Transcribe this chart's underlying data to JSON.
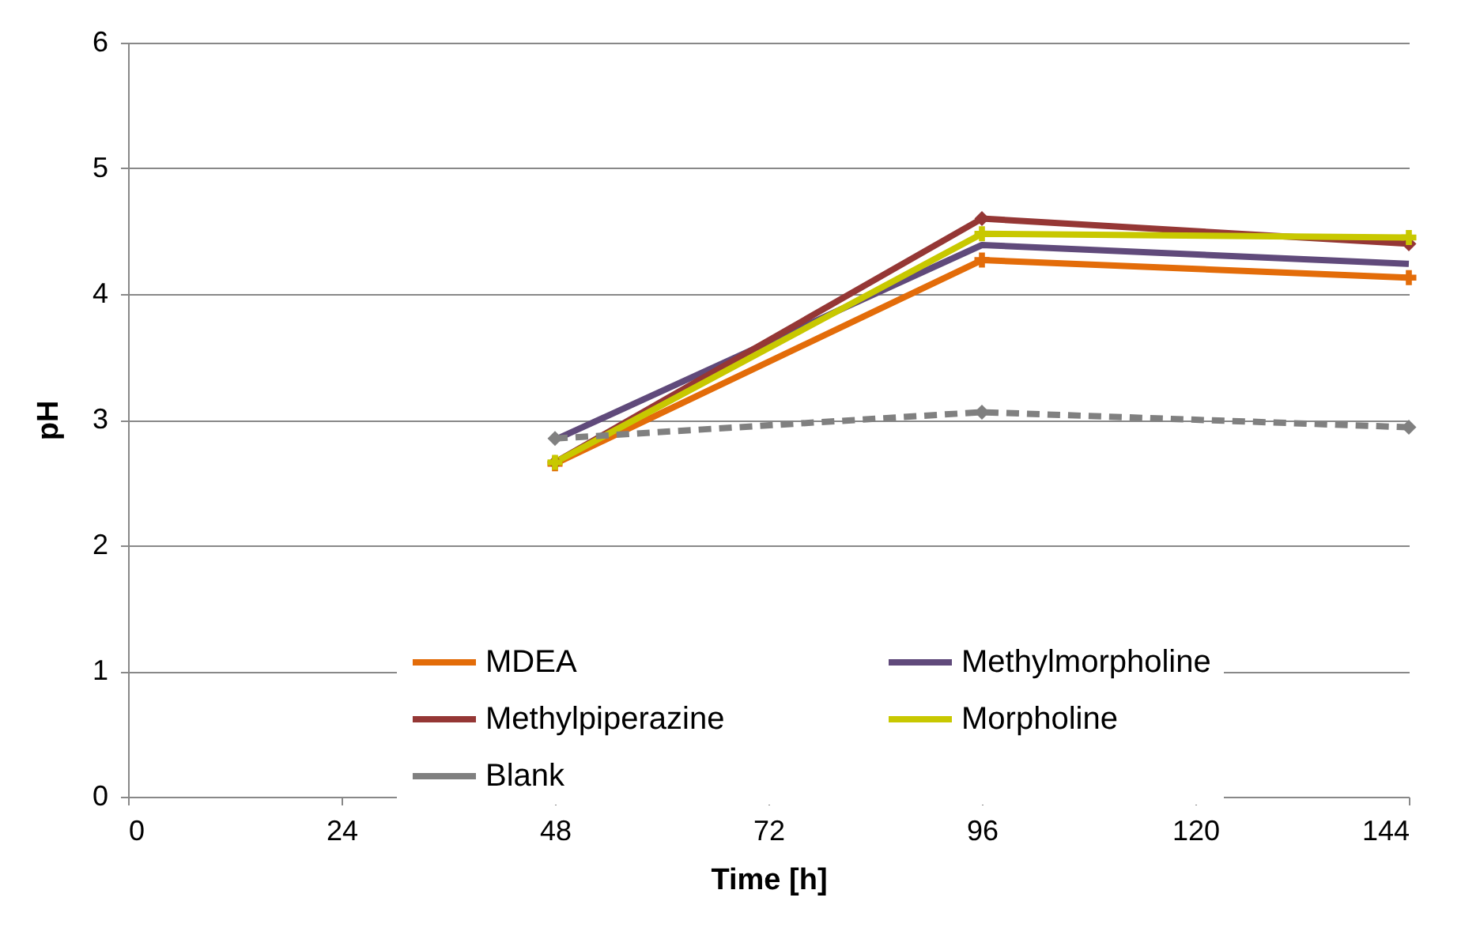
{
  "chart_data": {
    "type": "line",
    "xlabel": "Time [h]",
    "ylabel": "pH",
    "x": [
      48,
      96,
      144
    ],
    "xlim": [
      0,
      144
    ],
    "xticks": [
      0,
      24,
      48,
      72,
      96,
      120,
      144
    ],
    "ylim": [
      0,
      6
    ],
    "yticks": [
      0,
      1,
      2,
      3,
      4,
      5,
      6
    ],
    "grid": "y",
    "legend": "bottom",
    "series": [
      {
        "name": "MDEA",
        "color": "#e36c09",
        "marker": "cross",
        "values": [
          2.65,
          4.27,
          4.13
        ]
      },
      {
        "name": "Methylmorpholine",
        "color": "#604a7b",
        "marker": "none",
        "values": [
          2.84,
          4.39,
          4.24
        ]
      },
      {
        "name": "Methylpiperazine",
        "color": "#953735",
        "marker": "diamond",
        "values": [
          2.66,
          4.6,
          4.4
        ]
      },
      {
        "name": "Morpholine",
        "color": "#c8c800",
        "marker": "cross",
        "values": [
          2.66,
          4.48,
          4.45
        ]
      },
      {
        "name": "Blank",
        "color": "#808080",
        "marker": "diamond",
        "line_style": "dashed",
        "values": [
          2.85,
          3.06,
          2.94
        ]
      }
    ]
  }
}
